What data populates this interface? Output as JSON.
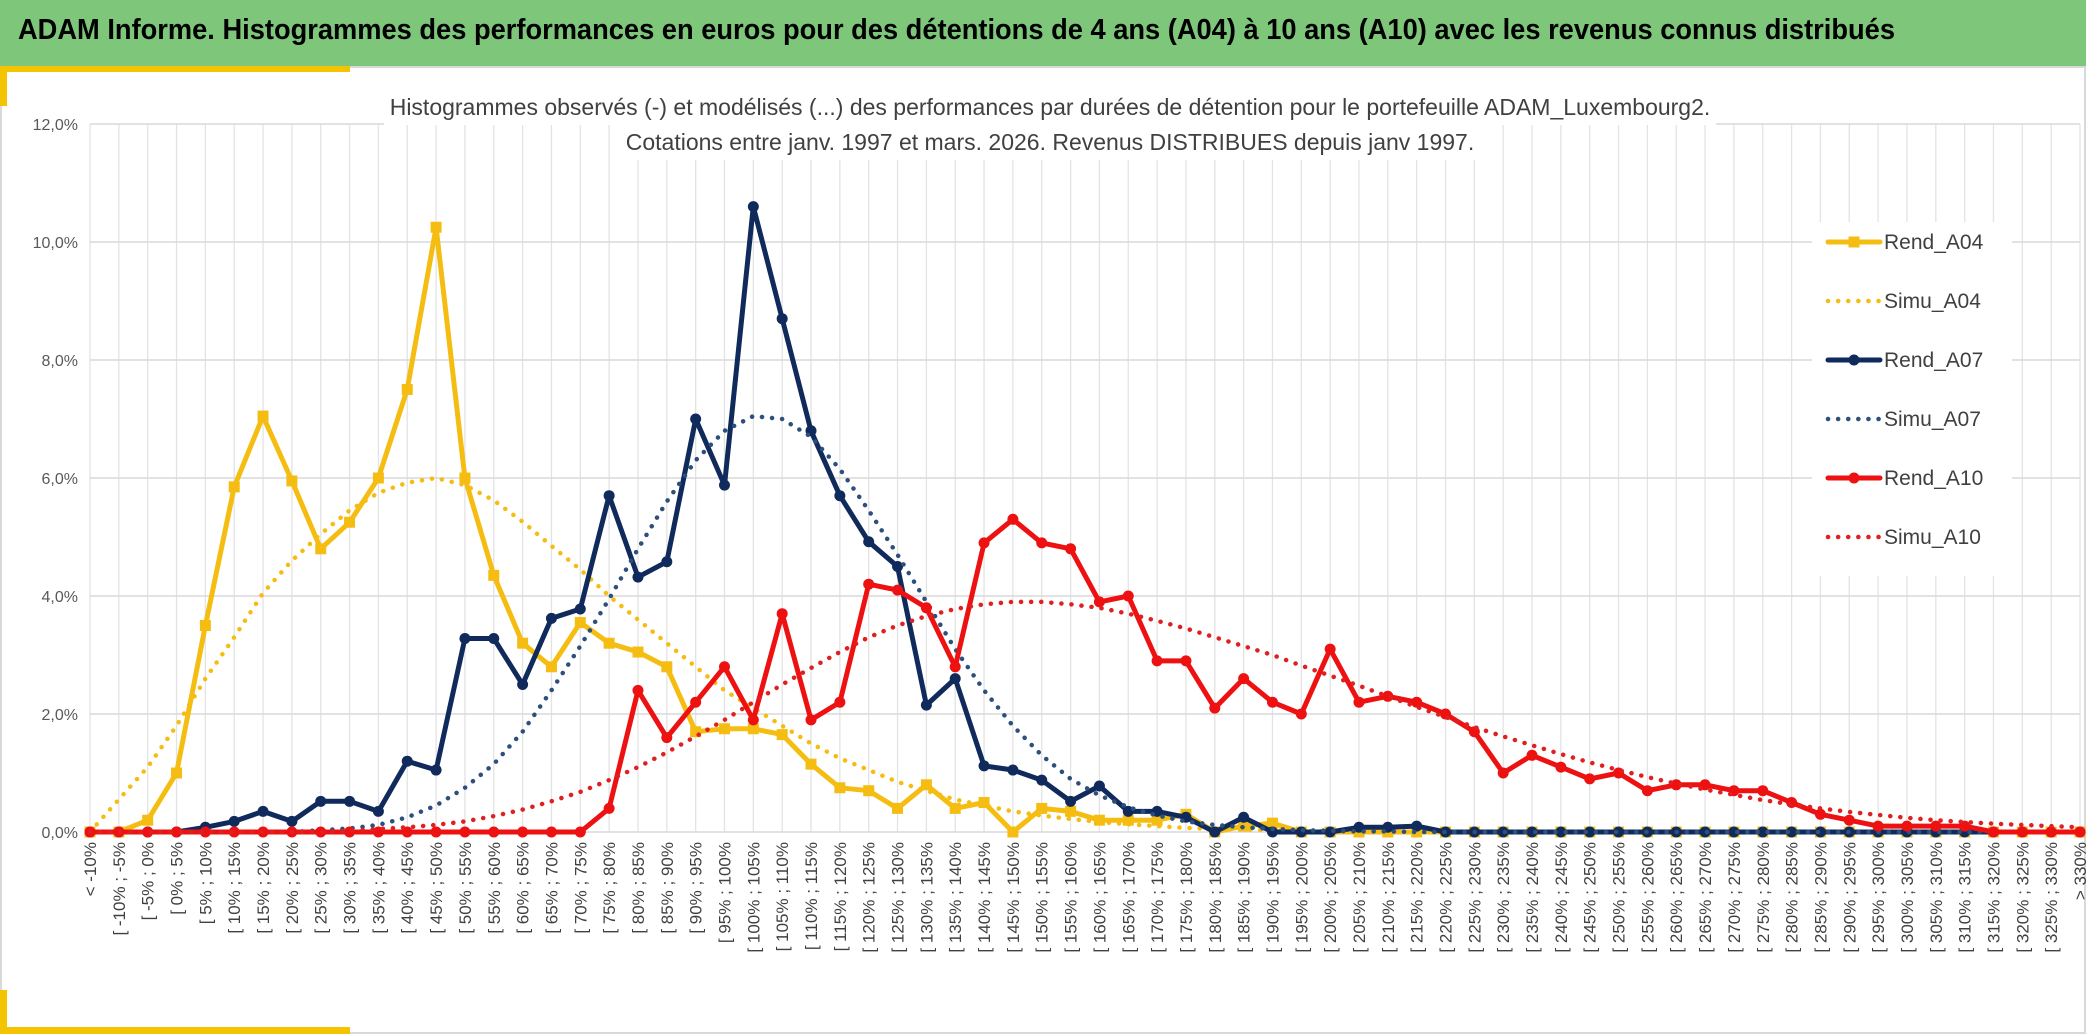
{
  "header": {
    "title": "ADAM Informe. Histogrammes des performances en euros pour des détentions de 4 ans (A04) à 10 ans (A10) avec les revenus connus distribués"
  },
  "colors": {
    "header_bg": "#7dc67a",
    "accent": "#f5c400",
    "A04": "#f5bd12",
    "A07": "#102a5c",
    "A07_simu": "#2c4f7c",
    "A10": "#ee1111",
    "A10_simu": "#e02020"
  },
  "chart_data": {
    "type": "line",
    "title_lines": [
      "Histogrammes observés (-) et modélisés (...) des performances par durées de détention pour le portefeuille ADAM_Luxembourg2.",
      "Cotations entre janv. 1997 et mars. 2026. Revenus DISTRIBUES depuis janv 1997."
    ],
    "xlabel": "",
    "ylabel": "",
    "ylim": [
      0,
      12
    ],
    "y_ticks": [
      "0,0%",
      "2,0%",
      "4,0%",
      "6,0%",
      "8,0%",
      "10,0%",
      "12,0%"
    ],
    "y_tick_values": [
      0,
      2,
      4,
      6,
      8,
      10,
      12
    ],
    "grid": true,
    "legend_position": "right",
    "categories": [
      "< -10%",
      "[ -10% ; -5%",
      "[ -5% ; 0%",
      "[ 0% ; 5%",
      "[ 5% ; 10%",
      "[ 10% ; 15%",
      "[ 15% ; 20%",
      "[ 20% ; 25%",
      "[ 25% ; 30%",
      "[ 30% ; 35%",
      "[ 35% ; 40%",
      "[ 40% ; 45%",
      "[ 45% ; 50%",
      "[ 50% ; 55%",
      "[ 55% ; 60%",
      "[ 60% ; 65%",
      "[ 65% ; 70%",
      "[ 70% ; 75%",
      "[ 75% ; 80%",
      "[ 80% ; 85%",
      "[ 85% ; 90%",
      "[ 90% ; 95%",
      "[ 95% ; 100%",
      "[ 100% ; 105%",
      "[ 105% ; 110%",
      "[ 110% ; 115%",
      "[ 115% ; 120%",
      "[ 120% ; 125%",
      "[ 125% ; 130%",
      "[ 130% ; 135%",
      "[ 135% ; 140%",
      "[ 140% ; 145%",
      "[ 145% ; 150%",
      "[ 150% ; 155%",
      "[ 155% ; 160%",
      "[ 160% ; 165%",
      "[ 165% ; 170%",
      "[ 170% ; 175%",
      "[ 175% ; 180%",
      "[ 180% ; 185%",
      "[ 185% ; 190%",
      "[ 190% ; 195%",
      "[ 195% ; 200%",
      "[ 200% ; 205%",
      "[ 205% ; 210%",
      "[ 210% ; 215%",
      "[ 215% ; 220%",
      "[ 220% ; 225%",
      "[ 225% ; 230%",
      "[ 230% ; 235%",
      "[ 235% ; 240%",
      "[ 240% ; 245%",
      "[ 245% ; 250%",
      "[ 250% ; 255%",
      "[ 255% ; 260%",
      "[ 260% ; 265%",
      "[ 265% ; 270%",
      "[ 270% ; 275%",
      "[ 275% ; 280%",
      "[ 280% ; 285%",
      "[ 285% ; 290%",
      "[ 290% ; 295%",
      "[ 295% ; 300%",
      "[ 300% ; 305%",
      "[ 305% ; 310%",
      "[ 310% ; 315%",
      "[ 315% ; 320%",
      "[ 320% ; 325%",
      "[ 325% ; 330%",
      "> 330%"
    ],
    "series": [
      {
        "name": "Rend_A04",
        "style": "solid",
        "marker": "square",
        "color": "#f5bd12",
        "values": [
          0,
          0,
          0.2,
          1.0,
          3.5,
          5.85,
          7.05,
          5.95,
          4.8,
          5.25,
          6.0,
          7.5,
          10.25,
          6.0,
          4.35,
          3.2,
          2.8,
          3.55,
          3.2,
          3.05,
          2.8,
          1.7,
          1.75,
          1.75,
          1.65,
          1.15,
          0.75,
          0.7,
          0.4,
          0.8,
          0.4,
          0.5,
          0.0,
          0.4,
          0.35,
          0.2,
          0.2,
          0.2,
          0.3,
          0.0,
          0.1,
          0.15,
          0,
          0,
          0,
          0,
          0,
          0,
          0,
          0,
          0,
          0,
          0,
          0,
          0,
          0,
          0,
          0,
          0,
          0,
          0,
          0,
          0,
          0,
          0,
          0,
          0,
          0,
          0,
          0
        ]
      },
      {
        "name": "Simu_A04",
        "style": "dotted",
        "marker": "none",
        "color": "#f5bd12",
        "values": [
          0.0,
          0.55,
          1.1,
          1.8,
          2.6,
          3.3,
          4.05,
          4.6,
          5.05,
          5.45,
          5.75,
          5.92,
          6.0,
          5.88,
          5.62,
          5.26,
          4.85,
          4.45,
          4.0,
          3.6,
          3.2,
          2.8,
          2.4,
          2.1,
          1.8,
          1.5,
          1.25,
          1.05,
          0.85,
          0.7,
          0.55,
          0.45,
          0.35,
          0.28,
          0.22,
          0.17,
          0.13,
          0.1,
          0.07,
          0.05,
          0.04,
          0.03,
          0.02,
          0.01,
          0.01,
          0,
          0,
          0,
          0,
          0,
          0,
          0,
          0,
          0,
          0,
          0,
          0,
          0,
          0,
          0,
          0,
          0,
          0,
          0,
          0,
          0,
          0,
          0,
          0,
          0
        ]
      },
      {
        "name": "Rend_A07",
        "style": "solid",
        "marker": "circle",
        "color": "#102a5c",
        "values": [
          0,
          0,
          0,
          0,
          0.08,
          0.18,
          0.35,
          0.18,
          0.52,
          0.52,
          0.35,
          1.2,
          1.05,
          3.28,
          3.28,
          2.5,
          3.62,
          3.78,
          5.7,
          4.32,
          4.58,
          7.0,
          5.88,
          10.6,
          8.7,
          6.8,
          5.7,
          4.92,
          4.5,
          2.15,
          2.6,
          1.12,
          1.05,
          0.88,
          0.52,
          0.78,
          0.35,
          0.35,
          0.25,
          0.0,
          0.25,
          0.0,
          0.0,
          0.0,
          0.08,
          0.08,
          0.1,
          0,
          0,
          0,
          0,
          0,
          0,
          0,
          0,
          0,
          0,
          0,
          0,
          0,
          0,
          0,
          0,
          0,
          0,
          0,
          0,
          0,
          0,
          0
        ]
      },
      {
        "name": "Simu_A07",
        "style": "dotted",
        "marker": "none",
        "color": "#2c4f7c",
        "values": [
          0,
          0,
          0,
          0,
          0,
          0,
          0,
          0,
          0.03,
          0.06,
          0.12,
          0.25,
          0.45,
          0.75,
          1.15,
          1.7,
          2.4,
          3.15,
          3.95,
          4.8,
          5.6,
          6.3,
          6.8,
          7.05,
          7.0,
          6.7,
          6.15,
          5.45,
          4.7,
          3.9,
          3.1,
          2.4,
          1.8,
          1.3,
          0.9,
          0.62,
          0.42,
          0.28,
          0.18,
          0.12,
          0.08,
          0.05,
          0.03,
          0.02,
          0.01,
          0.01,
          0,
          0,
          0,
          0,
          0,
          0,
          0,
          0,
          0,
          0,
          0,
          0,
          0,
          0,
          0,
          0,
          0,
          0,
          0,
          0,
          0,
          0,
          0,
          0
        ]
      },
      {
        "name": "Rend_A10",
        "style": "solid",
        "marker": "circle",
        "color": "#ee1111",
        "values": [
          0,
          0,
          0,
          0,
          0,
          0,
          0,
          0,
          0,
          0,
          0,
          0,
          0,
          0,
          0,
          0,
          0,
          0,
          0.4,
          2.4,
          1.6,
          2.2,
          2.8,
          1.9,
          3.7,
          1.9,
          2.2,
          4.2,
          4.1,
          3.8,
          2.8,
          4.9,
          5.3,
          4.9,
          4.8,
          3.9,
          4.0,
          2.9,
          2.9,
          2.1,
          2.6,
          2.2,
          2.0,
          3.1,
          2.2,
          2.3,
          2.2,
          2.0,
          1.7,
          1.0,
          1.3,
          1.1,
          0.9,
          1.0,
          0.7,
          0.8,
          0.8,
          0.7,
          0.7,
          0.5,
          0.3,
          0.2,
          0.1,
          0.1,
          0.1,
          0.1,
          0.0,
          0.0,
          0.0,
          0.0
        ]
      },
      {
        "name": "Simu_A10",
        "style": "dotted",
        "marker": "none",
        "color": "#e02020",
        "values": [
          0,
          0,
          0,
          0,
          0,
          0,
          0,
          0,
          0,
          0.02,
          0.05,
          0.08,
          0.12,
          0.18,
          0.27,
          0.38,
          0.52,
          0.68,
          0.88,
          1.1,
          1.35,
          1.62,
          1.9,
          2.2,
          2.5,
          2.78,
          3.05,
          3.3,
          3.5,
          3.66,
          3.78,
          3.86,
          3.9,
          3.9,
          3.86,
          3.8,
          3.7,
          3.58,
          3.45,
          3.3,
          3.15,
          3.0,
          2.82,
          2.65,
          2.48,
          2.3,
          2.12,
          1.95,
          1.78,
          1.62,
          1.47,
          1.32,
          1.18,
          1.05,
          0.93,
          0.82,
          0.72,
          0.63,
          0.54,
          0.47,
          0.4,
          0.34,
          0.29,
          0.24,
          0.2,
          0.17,
          0.14,
          0.12,
          0.1,
          0.08
        ]
      }
    ]
  }
}
